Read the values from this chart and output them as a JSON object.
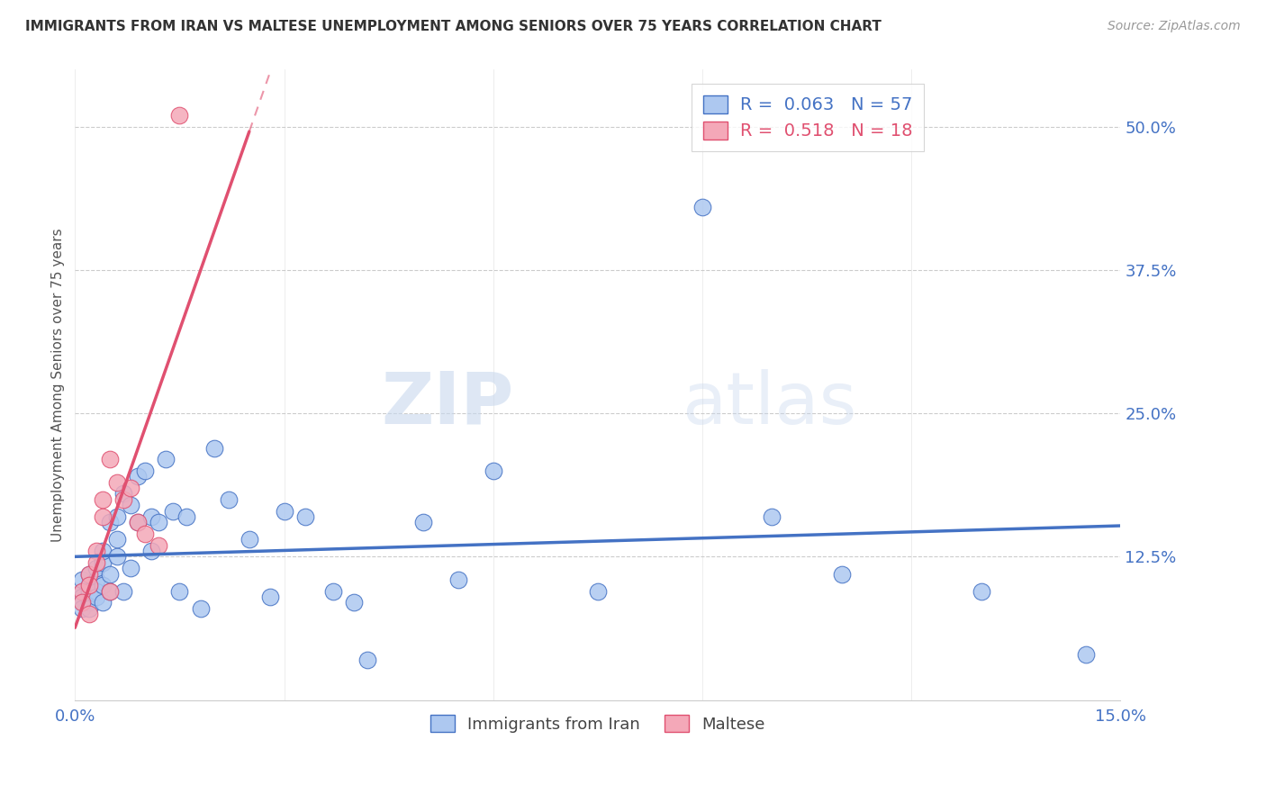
{
  "title": "IMMIGRANTS FROM IRAN VS MALTESE UNEMPLOYMENT AMONG SENIORS OVER 75 YEARS CORRELATION CHART",
  "source": "Source: ZipAtlas.com",
  "ylabel": "Unemployment Among Seniors over 75 years",
  "x_min": 0.0,
  "x_max": 0.15,
  "y_min": 0.0,
  "y_max": 0.55,
  "x_ticks": [
    0.0,
    0.03,
    0.06,
    0.09,
    0.12,
    0.15
  ],
  "x_tick_labels": [
    "0.0%",
    "",
    "",
    "",
    "",
    "15.0%"
  ],
  "y_ticks_right": [
    0.125,
    0.25,
    0.375,
    0.5
  ],
  "y_tick_labels_right": [
    "12.5%",
    "25.0%",
    "37.5%",
    "50.0%"
  ],
  "iran_color": "#adc8f0",
  "iran_color_line": "#4472c4",
  "maltese_color": "#f4a8b8",
  "maltese_color_line": "#e05070",
  "iran_R": 0.063,
  "iran_N": 57,
  "maltese_R": 0.518,
  "maltese_N": 18,
  "watermark_zip": "ZIP",
  "watermark_atlas": "atlas",
  "iran_x": [
    0.001,
    0.001,
    0.001,
    0.001,
    0.001,
    0.002,
    0.002,
    0.002,
    0.002,
    0.002,
    0.003,
    0.003,
    0.003,
    0.003,
    0.004,
    0.004,
    0.004,
    0.004,
    0.005,
    0.005,
    0.005,
    0.006,
    0.006,
    0.006,
    0.007,
    0.007,
    0.008,
    0.008,
    0.009,
    0.009,
    0.01,
    0.011,
    0.011,
    0.012,
    0.013,
    0.014,
    0.015,
    0.016,
    0.018,
    0.02,
    0.022,
    0.025,
    0.028,
    0.03,
    0.033,
    0.037,
    0.04,
    0.042,
    0.05,
    0.055,
    0.06,
    0.075,
    0.09,
    0.1,
    0.11,
    0.13,
    0.145
  ],
  "iran_y": [
    0.095,
    0.105,
    0.09,
    0.085,
    0.08,
    0.1,
    0.095,
    0.11,
    0.085,
    0.08,
    0.105,
    0.095,
    0.115,
    0.09,
    0.12,
    0.1,
    0.13,
    0.085,
    0.11,
    0.095,
    0.155,
    0.125,
    0.14,
    0.16,
    0.18,
    0.095,
    0.17,
    0.115,
    0.195,
    0.155,
    0.2,
    0.16,
    0.13,
    0.155,
    0.21,
    0.165,
    0.095,
    0.16,
    0.08,
    0.22,
    0.175,
    0.14,
    0.09,
    0.165,
    0.16,
    0.095,
    0.085,
    0.035,
    0.155,
    0.105,
    0.2,
    0.095,
    0.43,
    0.16,
    0.11,
    0.095,
    0.04
  ],
  "maltese_x": [
    0.001,
    0.001,
    0.002,
    0.002,
    0.002,
    0.003,
    0.003,
    0.004,
    0.004,
    0.005,
    0.005,
    0.006,
    0.007,
    0.008,
    0.009,
    0.01,
    0.012,
    0.015
  ],
  "maltese_y": [
    0.095,
    0.085,
    0.11,
    0.1,
    0.075,
    0.13,
    0.12,
    0.175,
    0.16,
    0.21,
    0.095,
    0.19,
    0.175,
    0.185,
    0.155,
    0.145,
    0.135,
    0.51
  ]
}
